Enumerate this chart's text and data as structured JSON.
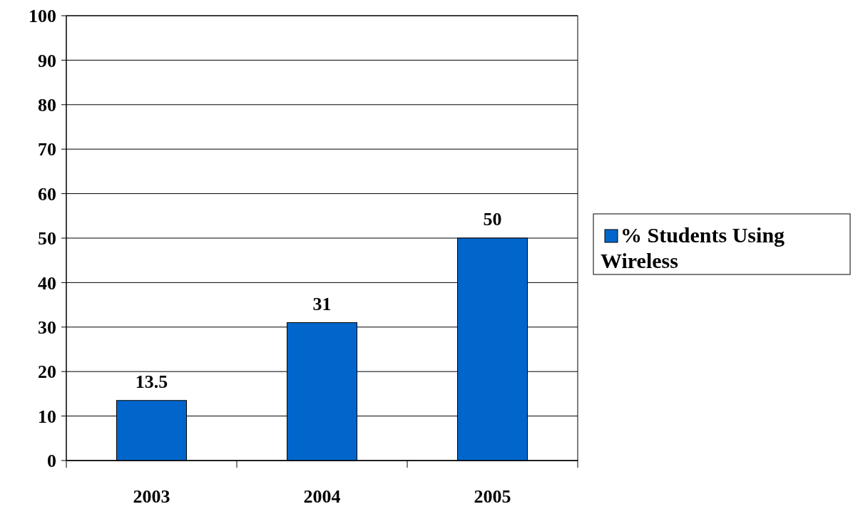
{
  "chart_data": {
    "type": "bar",
    "categories": [
      "2003",
      "2004",
      "2005"
    ],
    "series": [
      {
        "name": "% Students Using Wireless",
        "color": "#0066cc",
        "values": [
          13.5,
          31,
          50
        ]
      }
    ],
    "ylim": [
      0,
      100
    ],
    "yticks": [
      0,
      10,
      20,
      30,
      40,
      50,
      60,
      70,
      80,
      90,
      100
    ],
    "grid": "y",
    "legend": "right",
    "data_labels": true
  }
}
